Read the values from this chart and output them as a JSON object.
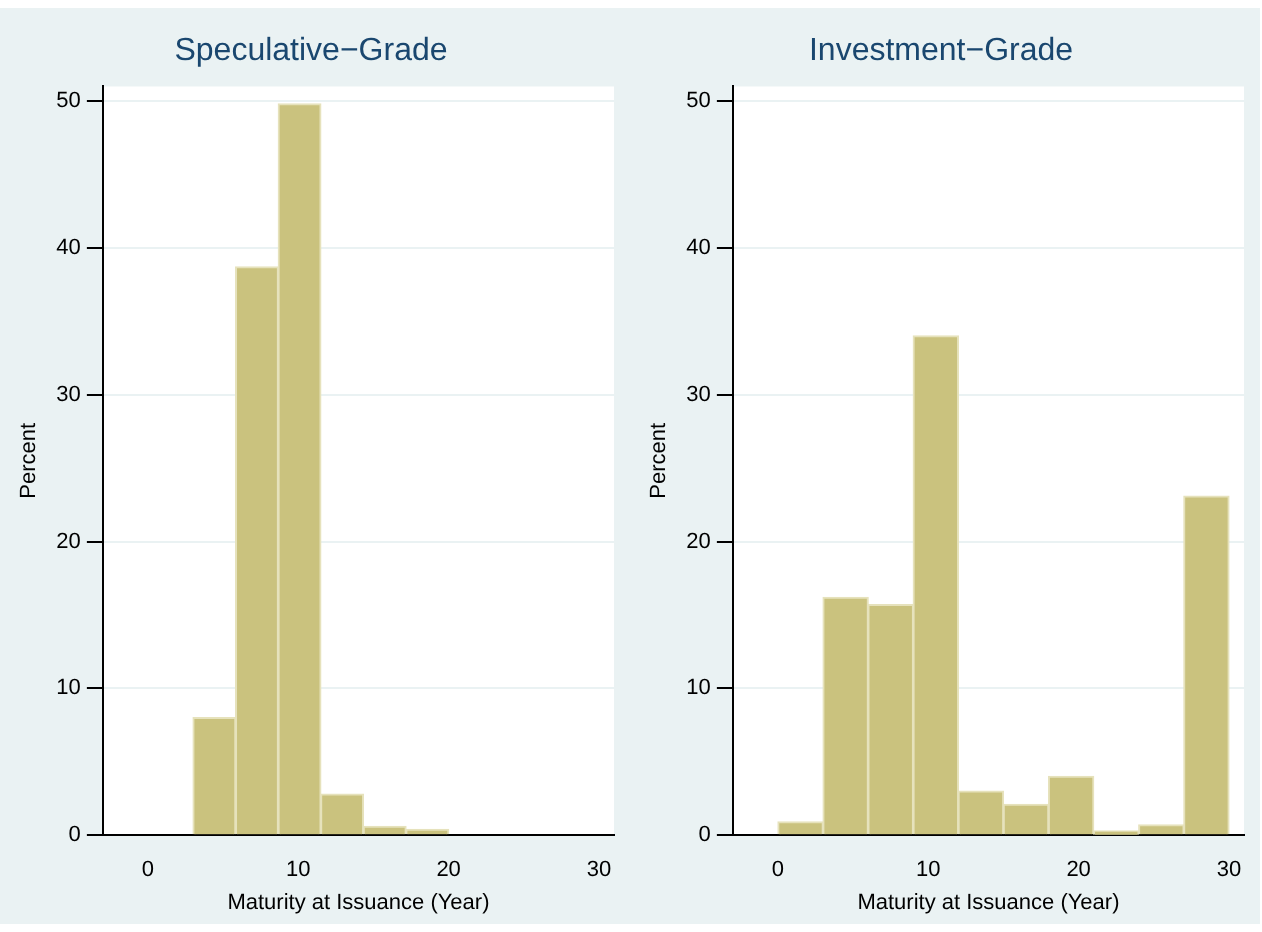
{
  "chart_data": [
    {
      "type": "histogram",
      "title": "Speculative−Grade",
      "xlabel": "Maturity at Issuance (Year)",
      "ylabel": "Percent",
      "bins": [
        3,
        5.83,
        8.67,
        11.5,
        14.33,
        17.17,
        20
      ],
      "values": [
        8,
        38.7,
        49.8,
        2.8,
        0.6,
        0.4
      ],
      "color": "#cac27e",
      "xlim": [
        -3,
        31
      ],
      "xticks": [
        0,
        10,
        20,
        30
      ],
      "ylim": [
        0,
        51
      ],
      "yticks": [
        0,
        10,
        20,
        30,
        40,
        50
      ],
      "grid": "y"
    },
    {
      "type": "histogram",
      "title": "Investment−Grade",
      "xlabel": "Maturity at Issuance (Year)",
      "ylabel": "Percent",
      "bins": [
        0,
        3,
        6,
        9,
        12,
        15,
        18,
        21,
        24,
        27,
        30
      ],
      "values": [
        0.9,
        16.2,
        15.7,
        34,
        3,
        2.1,
        4,
        0.3,
        0.7,
        23.1
      ],
      "color": "#cac27e",
      "xlim": [
        -3,
        31
      ],
      "xticks": [
        0,
        10,
        20,
        30
      ],
      "ylim": [
        0,
        51
      ],
      "yticks": [
        0,
        10,
        20,
        30,
        40,
        50
      ],
      "grid": "y"
    }
  ]
}
